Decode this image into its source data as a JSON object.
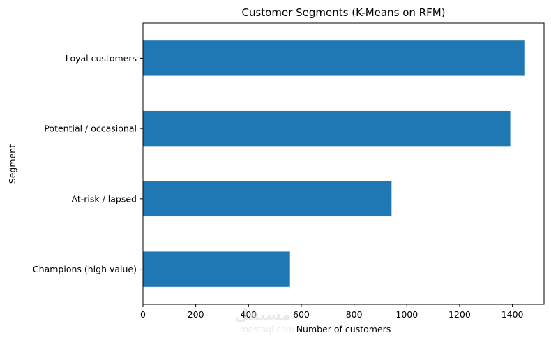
{
  "chart_data": {
    "type": "bar",
    "orientation": "horizontal",
    "title": "Customer Segments (K-Means on RFM)",
    "xlabel": "Number of customers",
    "ylabel": "Segment",
    "categories": [
      "Champions (high value)",
      "At-risk / lapsed",
      "Potential / occasional",
      "Loyal customers"
    ],
    "values": [
      557,
      942,
      1392,
      1448
    ],
    "xlim": [
      0,
      1520
    ],
    "xticks": [
      0,
      200,
      400,
      600,
      800,
      1000,
      1200,
      1400
    ],
    "grid": false,
    "bar_color": "#1f77b4"
  },
  "watermark": {
    "logo_text": "مستقل",
    "site_text": "mostaql.com"
  }
}
